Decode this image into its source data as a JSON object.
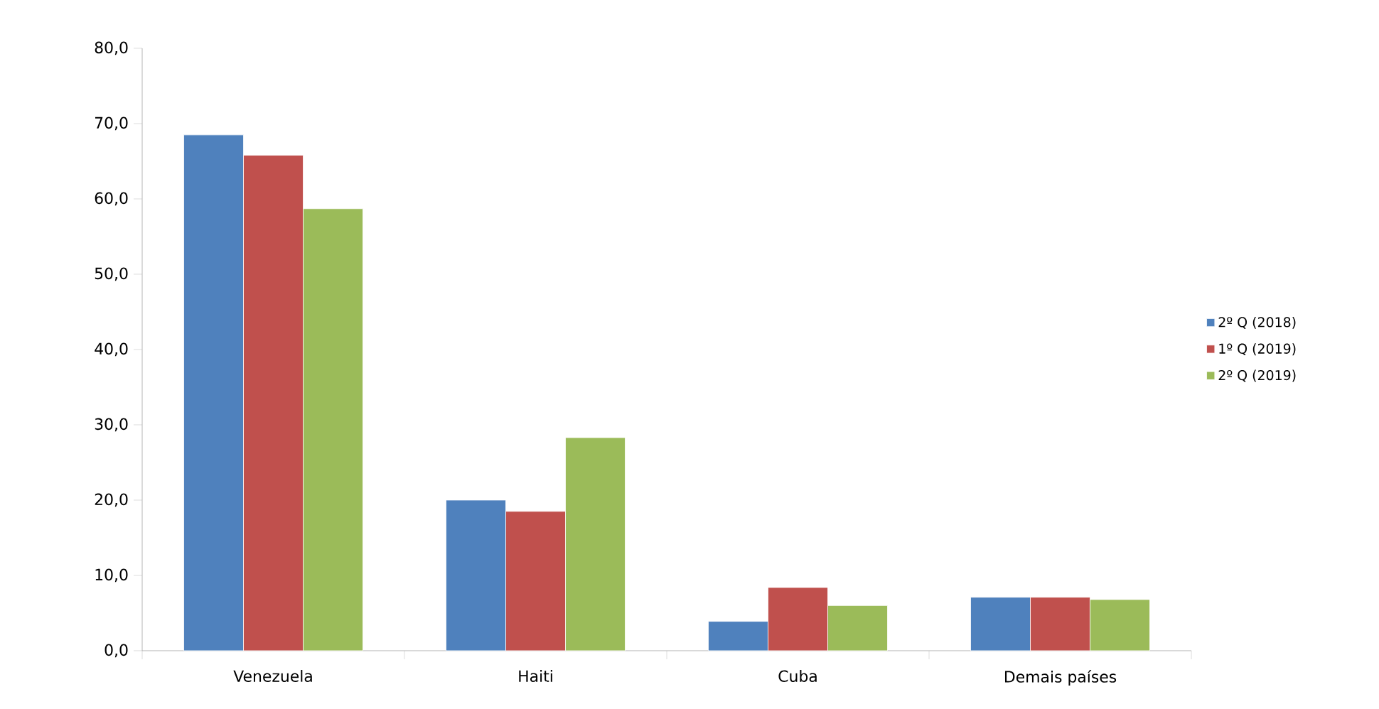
{
  "chart_data": {
    "type": "bar",
    "categories": [
      "Venezuela",
      "Haiti",
      "Cuba",
      "Demais países"
    ],
    "series": [
      {
        "name": "2º Q (2018)",
        "color": "#4f81bd",
        "values": [
          68.5,
          20.0,
          3.9,
          7.1
        ]
      },
      {
        "name": "1º Q (2019)",
        "color": "#c0504d",
        "values": [
          65.8,
          18.5,
          8.4,
          7.1
        ]
      },
      {
        "name": "2º Q (2019)",
        "color": "#9bbb59",
        "values": [
          58.7,
          28.3,
          6.0,
          6.8
        ]
      }
    ],
    "ylim": [
      0,
      80
    ],
    "yticks": [
      {
        "value": 0,
        "label": "0,0"
      },
      {
        "value": 10,
        "label": "10,0"
      },
      {
        "value": 20,
        "label": "20,0"
      },
      {
        "value": 30,
        "label": "30,0"
      },
      {
        "value": 40,
        "label": "40,0"
      },
      {
        "value": 50,
        "label": "50,0"
      },
      {
        "value": 60,
        "label": "60,0"
      },
      {
        "value": 70,
        "label": "70,0"
      },
      {
        "value": 80,
        "label": "80,0"
      }
    ],
    "legend": "right",
    "grid": false
  }
}
